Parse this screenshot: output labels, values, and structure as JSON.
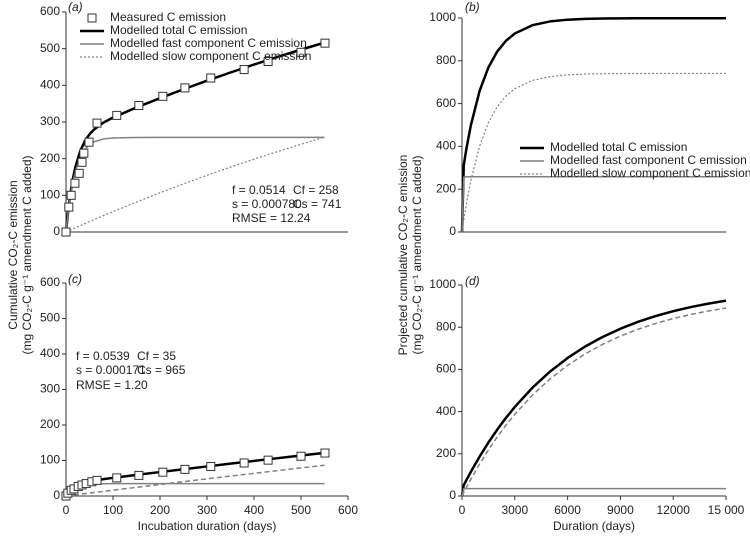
{
  "chart_data": [
    {
      "type": "line",
      "label": "(a)",
      "xlim": [
        0,
        600
      ],
      "ylim": [
        0,
        600
      ],
      "yticks": [
        0,
        100,
        200,
        300,
        400,
        500,
        600
      ],
      "ylabel": [
        "Cumulative CO₂-C emission",
        "(mg CO₂-C g⁻¹ amendment C added)"
      ],
      "annotations": [
        "f = 0.0514",
        "Cf = 258",
        "s = 0.000780",
        "Cs = 741",
        "RMSE = 12.24"
      ],
      "x": [
        0,
        5,
        10,
        15,
        20,
        30,
        40,
        50,
        60,
        80,
        100,
        150,
        200,
        250,
        300,
        350,
        400,
        450,
        500,
        550
      ],
      "series": [
        {
          "name": "Measured C emission",
          "marker": "square",
          "color": "#333333",
          "x": [
            0,
            6,
            11,
            19,
            28,
            34,
            38,
            49,
            66,
            108,
            155,
            206,
            253,
            308,
            379,
            430,
            500,
            551
          ],
          "values": [
            0,
            68,
            100,
            133,
            160,
            190,
            215,
            245,
            297,
            318,
            345,
            370,
            393,
            420,
            443,
            465,
            490,
            515
          ]
        },
        {
          "name": "Modelled total C emission",
          "color": "#000000",
          "width": 2.5,
          "values": [
            0,
            61.4,
            109.5,
            147.2,
            177.2,
            219.9,
            247.8,
            266.5,
            280.1,
            298.6,
            312.1,
            339.7,
            365.0,
            389.3,
            412.6,
            435.0,
            456.6,
            477.3,
            497.4,
            516.5
          ]
        },
        {
          "name": "Modelled fast component C emission",
          "color": "#808080",
          "width": 1.5,
          "values": [
            0,
            58.5,
            103.7,
            138.6,
            165.7,
            202.8,
            225.0,
            238.2,
            246.2,
            253.8,
            256.5,
            257.9,
            258,
            258,
            258,
            258,
            258,
            258,
            258,
            258
          ]
        },
        {
          "name": "Modelled slow component C emission",
          "color": "#808080",
          "width": 1.2,
          "dash": "2,2",
          "values": [
            0,
            2.9,
            5.8,
            8.6,
            11.5,
            17.1,
            22.8,
            28.3,
            33.9,
            44.8,
            55.6,
            81.8,
            107.0,
            131.3,
            154.6,
            177.0,
            198.6,
            219.3,
            239.4,
            258.5
          ]
        }
      ]
    },
    {
      "type": "line",
      "label": "(b)",
      "xlim": [
        0,
        15000
      ],
      "ylim": [
        0,
        1000
      ],
      "yticks": [
        0,
        200,
        400,
        600,
        800,
        1000
      ],
      "ylabel": [
        "Projected cumulative CO₂-C emission",
        "(mg CO₂-C g⁻¹ amendment C added)"
      ],
      "x": [
        0,
        100,
        250,
        500,
        1000,
        1500,
        2000,
        2500,
        3000,
        4000,
        5000,
        6000,
        7000,
        8000,
        9000,
        10000,
        11000,
        12000,
        13000,
        14000,
        15000
      ],
      "series": [
        {
          "name": "Modelled total C emission",
          "color": "#000000",
          "width": 2.5,
          "values": [
            0,
            312.1,
            389.3,
            497.4,
            659.3,
            769.0,
            843.3,
            893.6,
            927.6,
            966.3,
            984.0,
            992.1,
            995.9,
            997.6,
            998.3,
            998.7,
            998.9,
            999.0,
            999.0,
            999.0,
            999.0
          ]
        },
        {
          "name": "Modelled fast component C emission",
          "color": "#808080",
          "width": 1.5,
          "values": [
            0,
            256.5,
            258,
            258,
            258,
            258,
            258,
            258,
            258,
            258,
            258,
            258,
            258,
            258,
            258,
            258,
            258,
            258,
            258,
            258,
            258
          ]
        },
        {
          "name": "Modelled slow component C emission",
          "color": "#808080",
          "width": 1.2,
          "dash": "2,2",
          "values": [
            0,
            55.6,
            131.3,
            239.4,
            401.3,
            511.0,
            585.3,
            635.6,
            669.6,
            708.3,
            726.0,
            734.1,
            737.9,
            739.6,
            740.3,
            740.7,
            740.9,
            741.0,
            741.0,
            741.0,
            741.0
          ]
        }
      ]
    },
    {
      "type": "line",
      "label": "(c)",
      "xlim": [
        0,
        600
      ],
      "ylim": [
        0,
        600
      ],
      "yticks": [
        0,
        100,
        200,
        300,
        400,
        500,
        600
      ],
      "xticks": [
        0,
        100,
        200,
        300,
        400,
        500,
        600
      ],
      "xlabel": "Incubation duration (days)",
      "annotations": [
        "f = 0.0539",
        "Cf = 35",
        "s = 0.000171",
        "Cs = 965",
        "RMSE = 1.20"
      ],
      "x": [
        0,
        5,
        10,
        15,
        20,
        30,
        40,
        50,
        60,
        80,
        100,
        150,
        200,
        250,
        300,
        350,
        400,
        450,
        500,
        550
      ],
      "series": [
        {
          "marker": "square",
          "color": "#333333",
          "x": [
            0,
            4,
            11,
            17,
            26,
            34,
            43,
            55,
            66,
            108,
            155,
            206,
            253,
            308,
            379,
            430,
            500,
            551
          ],
          "values": [
            0,
            8,
            16,
            20,
            27,
            31,
            35,
            40,
            44,
            51,
            58,
            67,
            75,
            83,
            93,
            101,
            112,
            121
          ]
        },
        {
          "color": "#000000",
          "width": 2.5,
          "values": [
            0,
            9.1,
            16.2,
            21.9,
            26.4,
            33.0,
            37.5,
            40.8,
            43.5,
            47.6,
            51.2,
            59.4,
            67.4,
            75.4,
            83.3,
            91.1,
            98.8,
            106.5,
            114.1,
            121.6
          ]
        },
        {
          "color": "#808080",
          "width": 1.5,
          "values": [
            0,
            8.3,
            14.6,
            19.4,
            23.1,
            28.1,
            31.0,
            32.6,
            33.6,
            34.5,
            34.8,
            35,
            35,
            35,
            35,
            35,
            35,
            35,
            35,
            35
          ]
        },
        {
          "color": "#808080",
          "width": 1.5,
          "dash": "5,3",
          "values": [
            0,
            0.8,
            1.7,
            2.5,
            3.3,
            4.9,
            6.6,
            8.2,
            9.9,
            13.1,
            16.4,
            24.4,
            32.4,
            40.4,
            48.3,
            56.1,
            63.8,
            71.5,
            79.1,
            86.6
          ]
        }
      ]
    },
    {
      "type": "line",
      "label": "(d)",
      "xlim": [
        0,
        15000
      ],
      "ylim": [
        0,
        1000
      ],
      "yticks": [
        0,
        200,
        400,
        600,
        800,
        1000
      ],
      "xticks": [
        0,
        3000,
        6000,
        9000,
        12000,
        {
          "value": 15000,
          "label": "15 000"
        }
      ],
      "xlabel": "Duration (days)",
      "x": [
        0,
        100,
        250,
        500,
        1000,
        1500,
        2000,
        2500,
        3000,
        4000,
        5000,
        6000,
        7000,
        8000,
        9000,
        10000,
        11000,
        12000,
        13000,
        14000,
        15000
      ],
      "series": [
        {
          "color": "#000000",
          "width": 2.5,
          "values": [
            0,
            51.2,
            75.4,
            114.1,
            186.7,
            253.3,
            314.6,
            370.6,
            422.2,
            513.1,
            589.6,
            654.1,
            708.5,
            754.3,
            792.9,
            825.4,
            852.9,
            876.0,
            895.5,
            911.9,
            925.8
          ]
        },
        {
          "color": "#808080",
          "width": 1.5,
          "values": [
            0,
            34.8,
            35,
            35,
            35,
            35,
            35,
            35,
            35,
            35,
            35,
            35,
            35,
            35,
            35,
            35,
            35,
            35,
            35,
            35,
            35
          ]
        },
        {
          "color": "#808080",
          "width": 1.5,
          "dash": "5,3",
          "values": [
            0,
            16.4,
            40.4,
            79.1,
            151.7,
            218.3,
            279.6,
            335.6,
            387.2,
            478.1,
            554.6,
            619.1,
            673.5,
            719.3,
            757.9,
            790.4,
            817.9,
            841.0,
            860.5,
            876.9,
            890.8
          ]
        }
      ]
    }
  ]
}
